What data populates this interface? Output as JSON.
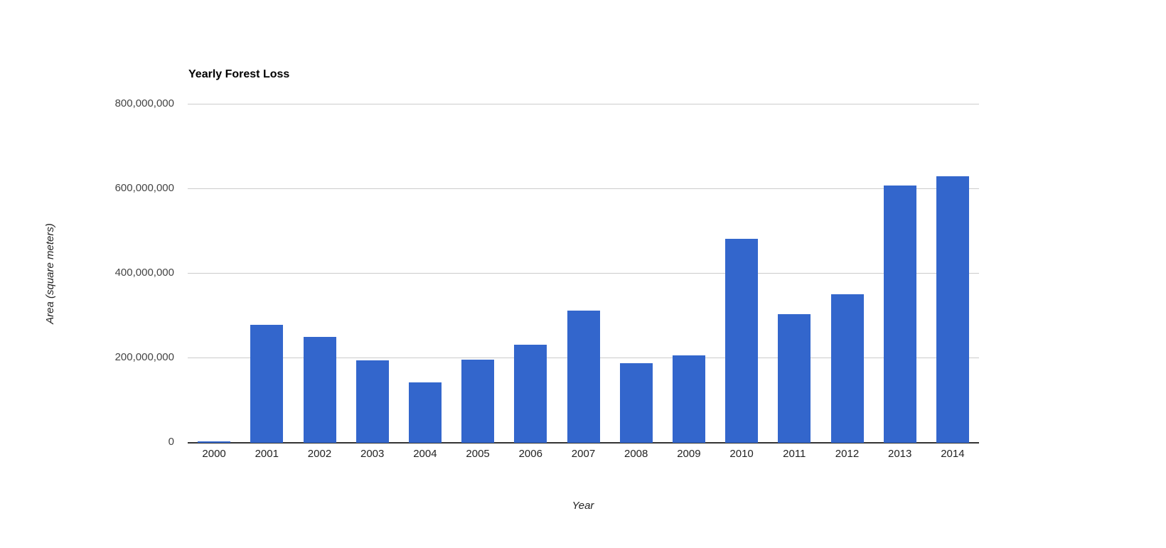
{
  "title": "Yearly Forest Loss",
  "axes": {
    "y_title": "Area (square meters)",
    "x_title": "Year",
    "y_ticks": [
      "800,000,000",
      "600,000,000",
      "400,000,000",
      "200,000,000",
      "0"
    ]
  },
  "colors": {
    "bar": "#3366cc",
    "gridline": "#cccccc",
    "baseline": "#333333",
    "title_text": "#000000",
    "y_tick_text": "#444444",
    "x_tick_text": "#222222",
    "background": "#ffffff"
  },
  "chart_data": {
    "type": "bar",
    "title": "Yearly Forest Loss",
    "xlabel": "Year",
    "ylabel": "Area (square meters)",
    "categories": [
      "2000",
      "2001",
      "2002",
      "2003",
      "2004",
      "2005",
      "2006",
      "2007",
      "2008",
      "2009",
      "2010",
      "2011",
      "2012",
      "2013",
      "2014"
    ],
    "values": [
      3000000,
      279000000,
      250000000,
      195000000,
      143000000,
      196000000,
      232000000,
      312000000,
      188000000,
      206000000,
      482000000,
      303000000,
      350000000,
      607000000,
      629000000
    ],
    "ylim": [
      0,
      800000000
    ],
    "ytick_interval": 200000000,
    "grid": true,
    "legend": "none",
    "bar_color": "#3366cc"
  }
}
